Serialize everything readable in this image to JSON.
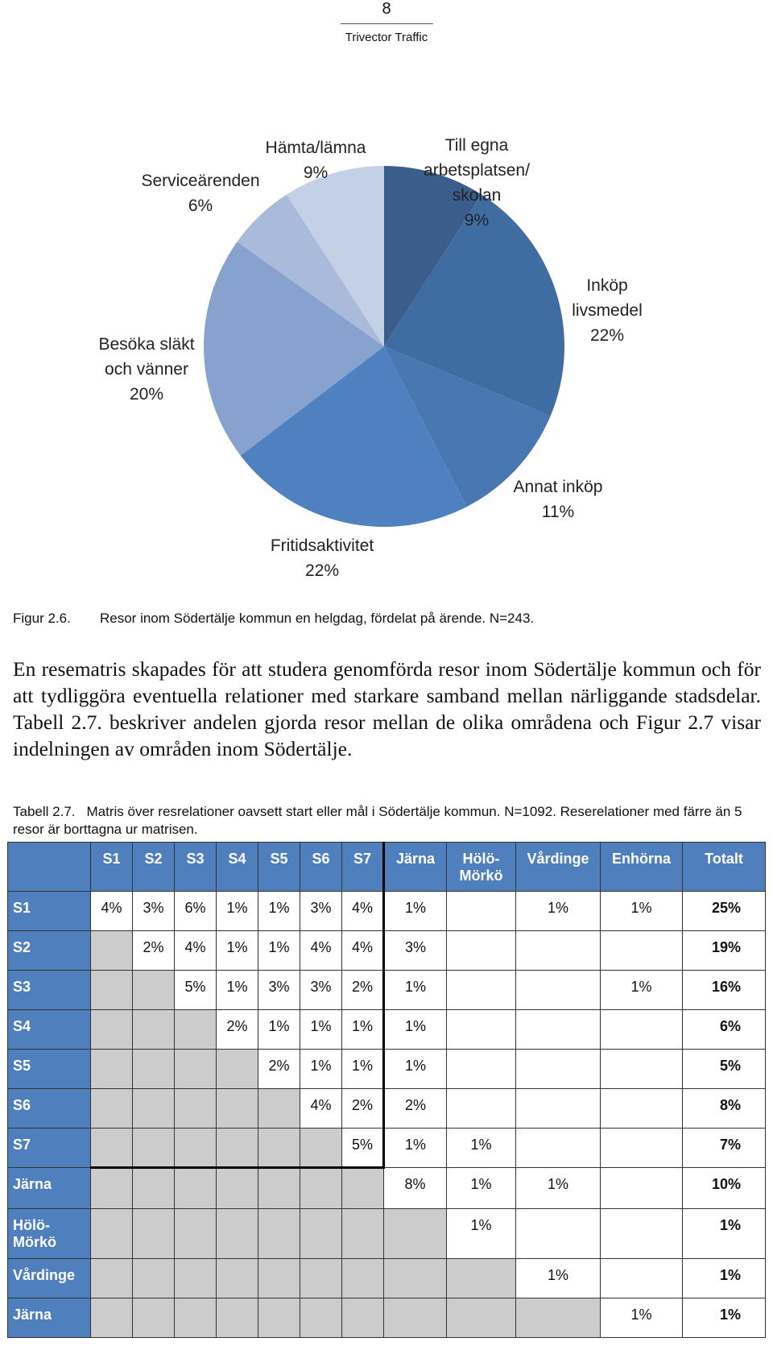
{
  "header": {
    "page_number": "8",
    "company": "Trivector Traffic"
  },
  "chart_data": {
    "type": "pie",
    "categories": [
      "Till egna arbetsplatsen/ skolan",
      "Inköp livsmedel",
      "Annat inköp",
      "Fritidsaktivitet",
      "Besöka släkt och vänner",
      "Serviceärenden",
      "Hämta/lämna"
    ],
    "values": [
      9,
      22,
      11,
      22,
      20,
      6,
      9
    ],
    "value_labels": [
      "9%",
      "22%",
      "11%",
      "22%",
      "20%",
      "6%",
      "9%"
    ],
    "colors": [
      "#3a5d8b",
      "#406da1",
      "#4977b1",
      "#4f81c0",
      "#87a2cf",
      "#a9badb",
      "#c4d0e6"
    ]
  },
  "caption": {
    "label": "Figur 2.6.",
    "text": "Resor inom Södertälje kommun en helgdag, fördelat på ärende. N=243."
  },
  "paragraph": "En resematris skapades för att studera genomförda resor inom Södertälje kommun och för att tydliggöra eventuella relationer med starkare samband mellan närliggande stadsdelar. Tabell 2.7. beskriver andelen gjorda resor mellan de olika områdena och Figur 2.7 visar indelningen av områden inom Södertälje.",
  "table_caption": {
    "label": "Tabell 2.7.",
    "text": "Matris över resrelationer oavsett start eller mål i Södertälje kommun. N=1092. Reserelationer med färre än 5 resor är borttagna ur matrisen."
  },
  "table": {
    "columns": [
      "S1",
      "S2",
      "S3",
      "S4",
      "S5",
      "S6",
      "S7",
      "Järna",
      "Hölö-Mörkö",
      "Vårdinge",
      "Enhörna",
      "Totalt"
    ],
    "rows": [
      {
        "label": "S1",
        "cells": [
          "4%",
          "3%",
          "6%",
          "1%",
          "1%",
          "3%",
          "4%",
          "1%",
          null,
          "1%",
          "1%",
          "25%"
        ]
      },
      {
        "label": "S2",
        "cells": [
          null,
          "2%",
          "4%",
          "1%",
          "1%",
          "4%",
          "4%",
          "3%",
          null,
          null,
          null,
          "19%"
        ]
      },
      {
        "label": "S3",
        "cells": [
          null,
          null,
          "5%",
          "1%",
          "3%",
          "3%",
          "2%",
          "1%",
          null,
          null,
          "1%",
          "16%"
        ]
      },
      {
        "label": "S4",
        "cells": [
          null,
          null,
          null,
          "2%",
          "1%",
          "1%",
          "1%",
          "1%",
          null,
          null,
          null,
          "6%"
        ]
      },
      {
        "label": "S5",
        "cells": [
          null,
          null,
          null,
          null,
          "2%",
          "1%",
          "1%",
          "1%",
          null,
          null,
          null,
          "5%"
        ]
      },
      {
        "label": "S6",
        "cells": [
          null,
          null,
          null,
          null,
          null,
          "4%",
          "2%",
          "2%",
          null,
          null,
          null,
          "8%"
        ]
      },
      {
        "label": "S7",
        "cells": [
          null,
          null,
          null,
          null,
          null,
          null,
          "5%",
          "1%",
          "1%",
          null,
          null,
          "7%"
        ]
      },
      {
        "label": "Järna",
        "cells": [
          null,
          null,
          null,
          null,
          null,
          null,
          null,
          "8%",
          "1%",
          "1%",
          null,
          "10%"
        ]
      },
      {
        "label": "Hölö-Mörkö",
        "cells": [
          null,
          null,
          null,
          null,
          null,
          null,
          null,
          null,
          "1%",
          null,
          null,
          "1%"
        ]
      },
      {
        "label": "Vårdinge",
        "cells": [
          null,
          null,
          null,
          null,
          null,
          null,
          null,
          null,
          null,
          "1%",
          null,
          "1%"
        ]
      },
      {
        "label": "Järna",
        "cells": [
          null,
          null,
          null,
          null,
          null,
          null,
          null,
          null,
          null,
          null,
          "1%",
          "1%"
        ]
      }
    ]
  }
}
